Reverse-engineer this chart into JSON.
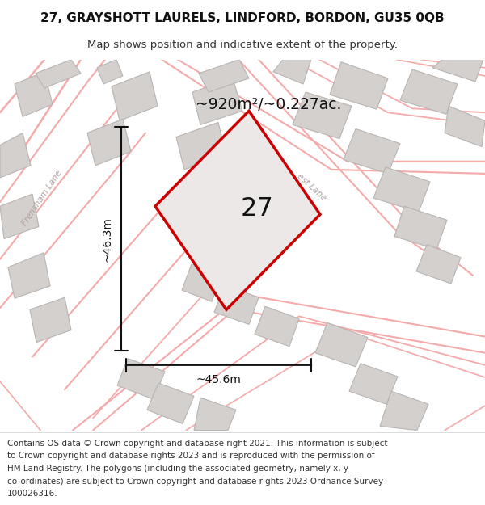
{
  "title": "27, GRAYSHOTT LAURELS, LINDFORD, BORDON, GU35 0QB",
  "subtitle": "Map shows position and indicative extent of the property.",
  "footer_lines": [
    "Contains OS data © Crown copyright and database right 2021. This information is subject",
    "to Crown copyright and database rights 2023 and is reproduced with the permission of",
    "HM Land Registry. The polygons (including the associated geometry, namely x, y",
    "co-ordinates) are subject to Crown copyright and database rights 2023 Ordnance Survey",
    "100026316."
  ],
  "area_label": "~920m²/~0.227ac.",
  "plot_number": "27",
  "dim_width": "~45.6m",
  "dim_height": "~46.3m",
  "map_bg": "#eeecea",
  "plot_fill": "#ede8e8",
  "plot_edge": "#cc0000",
  "road_color": "#f5aaaa",
  "building_face": "#d4d0ce",
  "building_edge": "#b8b4b2",
  "road_label_color": "#b0a0a0",
  "frensham_label": "Frensham Lane",
  "est_label": "est Lane"
}
